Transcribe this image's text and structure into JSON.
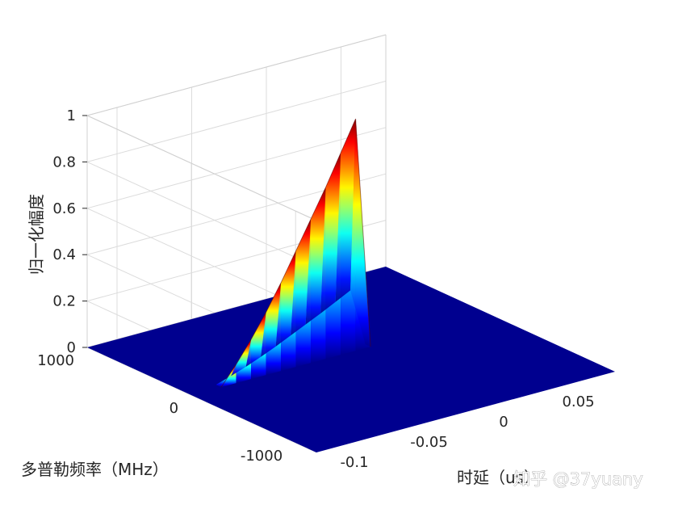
{
  "chart_data": {
    "type": "surface",
    "xlabel": "时延（us）",
    "ylabel": "多普勒频率（MHz）",
    "zlabel": "归一化幅度",
    "xlim": [
      -0.12,
      0.08
    ],
    "ylim": [
      -1200,
      1000
    ],
    "zlim": [
      0,
      1
    ],
    "x_ticks": [
      -0.1,
      -0.05,
      0,
      0.05
    ],
    "x_tick_labels": [
      "-0.1",
      "-0.05",
      "0",
      "0.05"
    ],
    "y_ticks": [
      -1000,
      0,
      1000
    ],
    "y_tick_labels": [
      "-1000",
      "0",
      "1000"
    ],
    "z_ticks": [
      0,
      0.2,
      0.4,
      0.6,
      0.8,
      1
    ],
    "z_tick_labels": [
      "0",
      "0.2",
      "0.4",
      "0.6",
      "0.8",
      "1"
    ],
    "grid": true,
    "colormap": "jet",
    "floor_color": "#00008f",
    "ridge_profile": [
      {
        "delay": -0.1,
        "amplitude": 0.0
      },
      {
        "delay": -0.09,
        "amplitude": 0.08
      },
      {
        "delay": -0.08,
        "amplitude": 0.17
      },
      {
        "delay": -0.07,
        "amplitude": 0.27
      },
      {
        "delay": -0.06,
        "amplitude": 0.38
      },
      {
        "delay": -0.05,
        "amplitude": 0.5
      },
      {
        "delay": -0.04,
        "amplitude": 0.62
      },
      {
        "delay": -0.03,
        "amplitude": 0.74
      },
      {
        "delay": -0.02,
        "amplitude": 0.87
      },
      {
        "delay": -0.01,
        "amplitude": 1.0
      },
      {
        "delay": 0.0,
        "amplitude": 0.0
      }
    ]
  },
  "watermark": "知乎 @37yuany"
}
